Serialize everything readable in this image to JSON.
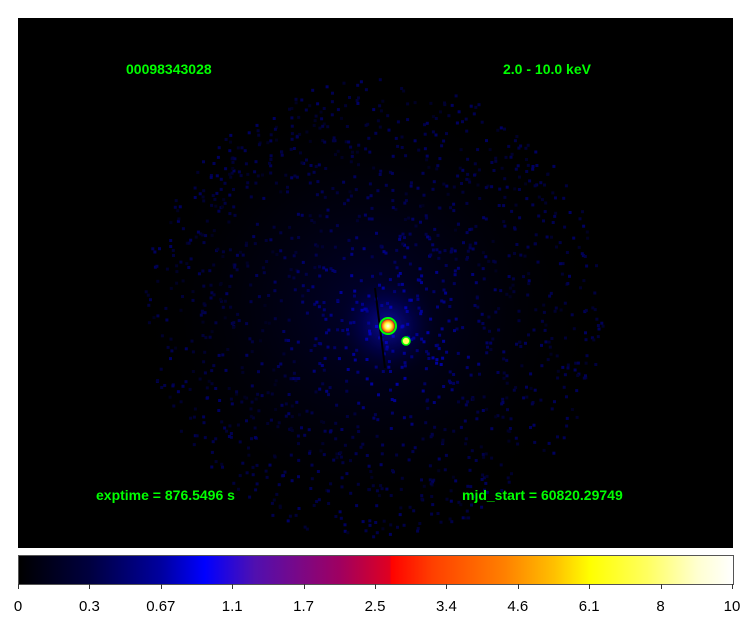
{
  "image": {
    "obs_id": "00098343028",
    "energy_band": "2.0 - 10.0 keV",
    "exptime_label": "exptime = 876.5496 s",
    "mjd_start_label": "mjd_start = 60820.29749",
    "annotation_color": "#00ff00",
    "region_marker": "green circle around brightest source"
  },
  "colorbar": {
    "colormap": "heat (black-blue-red-yellow-white)",
    "scale": "log-like",
    "ticks": [
      "0",
      "0.3",
      "0.67",
      "1.1",
      "1.7",
      "2.5",
      "3.4",
      "4.6",
      "6.1",
      "8",
      "10"
    ]
  }
}
